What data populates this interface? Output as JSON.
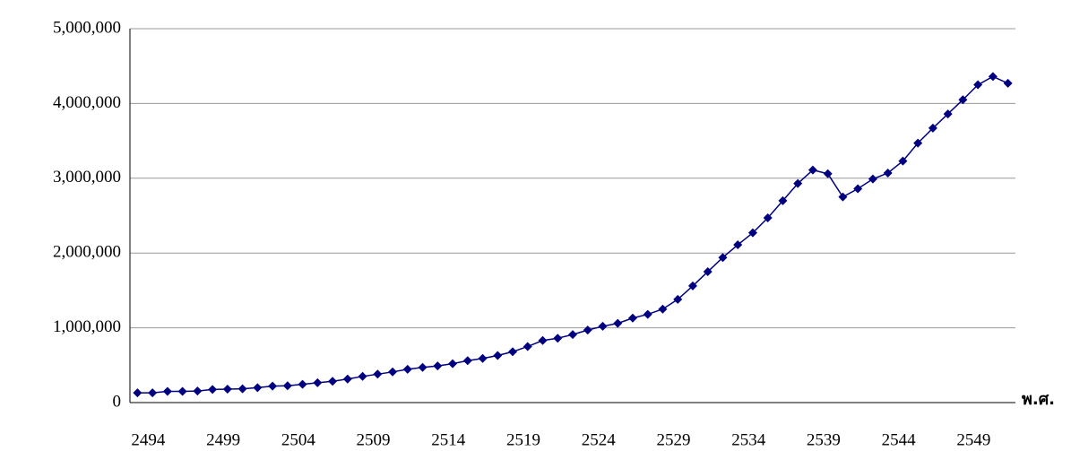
{
  "chart_data": {
    "type": "line",
    "x_label": "พ.ศ.",
    "categories": [
      "2494",
      null,
      null,
      null,
      null,
      "2499",
      null,
      null,
      null,
      null,
      "2504",
      null,
      null,
      null,
      null,
      "2509",
      null,
      null,
      null,
      null,
      "2514",
      null,
      null,
      null,
      null,
      "2519",
      null,
      null,
      null,
      null,
      "2524",
      null,
      null,
      null,
      null,
      "2529",
      null,
      null,
      null,
      null,
      "2534",
      null,
      null,
      null,
      null,
      "2539",
      null,
      null,
      null,
      null,
      "2544",
      null,
      null,
      null,
      null,
      "2549",
      null,
      null,
      null
    ],
    "values": [
      130000,
      130000,
      150000,
      150000,
      155000,
      175000,
      180000,
      185000,
      200000,
      220000,
      225000,
      245000,
      265000,
      285000,
      315000,
      350000,
      380000,
      410000,
      445000,
      470000,
      490000,
      520000,
      560000,
      590000,
      630000,
      680000,
      750000,
      830000,
      860000,
      910000,
      970000,
      1020000,
      1060000,
      1130000,
      1180000,
      1250000,
      1380000,
      1560000,
      1750000,
      1940000,
      2110000,
      2270000,
      2470000,
      2700000,
      2930000,
      3110000,
      3060000,
      2750000,
      2860000,
      2990000,
      3070000,
      3230000,
      3470000,
      3670000,
      3860000,
      4050000,
      4250000,
      4360000,
      4270000
    ],
    "color": "#000080",
    "ylim": [
      0,
      5000000
    ],
    "yticks": [
      0,
      {
        "value": 1000000,
        "label": "1,000,000"
      },
      {
        "value": 2000000,
        "label": "2,000,000"
      },
      {
        "value": 3000000,
        "label": "3,000,000"
      },
      {
        "value": 4000000,
        "label": "4,000,000"
      },
      {
        "value": 5000000,
        "label": "5,000,000"
      }
    ],
    "grid": true
  }
}
